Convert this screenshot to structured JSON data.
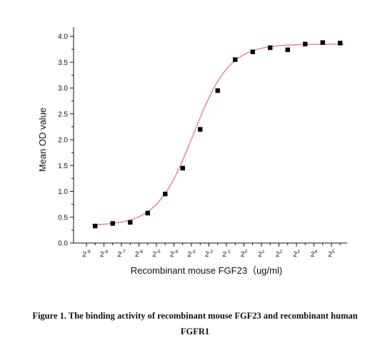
{
  "chart_data": {
    "type": "scatter",
    "xlabel": "Recombinant mouse FGF23（ug/ml)",
    "ylabel": "Mean OD value",
    "x_scale": "log2",
    "x_ticks": [
      {
        "base": "2",
        "exp": "-9",
        "value": -9
      },
      {
        "base": "2",
        "exp": "-8",
        "value": -8
      },
      {
        "base": "2",
        "exp": "-7",
        "value": -7
      },
      {
        "base": "2",
        "exp": "-6",
        "value": -6
      },
      {
        "base": "2",
        "exp": "-5",
        "value": -5
      },
      {
        "base": "2",
        "exp": "-4",
        "value": -4
      },
      {
        "base": "2",
        "exp": "-3",
        "value": -3
      },
      {
        "base": "2",
        "exp": "-2",
        "value": -2
      },
      {
        "base": "2",
        "exp": "-1",
        "value": -1
      },
      {
        "base": "2",
        "exp": "0",
        "value": 0
      },
      {
        "base": "2",
        "exp": "1",
        "value": 1
      },
      {
        "base": "2",
        "exp": "2",
        "value": 2
      },
      {
        "base": "2",
        "exp": "3",
        "value": 3
      },
      {
        "base": "2",
        "exp": "4",
        "value": 4
      },
      {
        "base": "2",
        "exp": "5",
        "value": 5
      }
    ],
    "y_ticks": [
      "0.0",
      "0.5",
      "1.0",
      "1.5",
      "2.0",
      "2.5",
      "3.0",
      "3.5",
      "4.0"
    ],
    "ylim": [
      0,
      4.2
    ],
    "xlim": [
      -10,
      6
    ],
    "series": [
      {
        "kind": "points",
        "marker": "square",
        "color": "#000000",
        "x": [
          -8.5,
          -7.5,
          -6.5,
          -5.5,
          -4.5,
          -3.5,
          -2.5,
          -1.5,
          -0.5,
          0.5,
          1.5,
          2.5,
          3.5,
          4.5,
          5.5
        ],
        "y": [
          0.33,
          0.38,
          0.4,
          0.58,
          0.95,
          1.45,
          2.2,
          2.95,
          3.55,
          3.7,
          3.78,
          3.74,
          3.85,
          3.88,
          3.87
        ]
      },
      {
        "kind": "fit",
        "color": "#e8787a",
        "model": "4PL",
        "bottom": 0.34,
        "top": 3.85,
        "x50": -2.9,
        "hill": 0.72
      }
    ],
    "grid": false,
    "legend": "none"
  },
  "caption": {
    "line1": "Figure 1. The binding activity of recombinant mouse FGF23 and recombinant human",
    "line2": "FGFR1"
  }
}
